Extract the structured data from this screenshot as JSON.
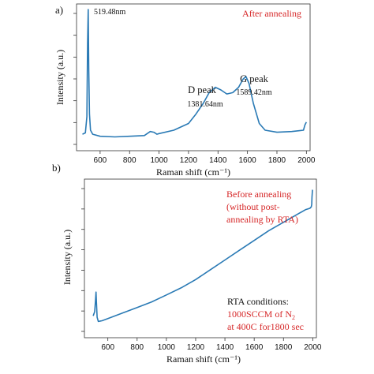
{
  "chart_data": [
    {
      "type": "line",
      "panel_label": "a)",
      "xlabel": "Raman shift (cm⁻¹)",
      "ylabel": "Intensity (a.u.)",
      "xlim": [
        440,
        2025
      ],
      "ylim": [
        0,
        1
      ],
      "x_ticks": [
        600,
        800,
        1000,
        1200,
        1400,
        1600,
        1800,
        2000
      ],
      "grid": false,
      "color": "#2a7ab5",
      "annotations": [
        {
          "id": "top",
          "text": "519.48nm"
        },
        {
          "id": "d_label",
          "text": "D peak"
        },
        {
          "id": "d_pos",
          "text": "1381.64nm"
        },
        {
          "id": "g_label",
          "text": "G peak"
        },
        {
          "id": "g_pos",
          "text": "1589.42nm"
        },
        {
          "id": "note",
          "text": "After annealing",
          "color": "#d62728"
        }
      ],
      "series": [
        {
          "x": [
            480,
            500,
            510,
            515,
            519.48,
            523,
            528,
            535,
            550,
            600,
            700,
            800,
            900,
            940,
            965,
            985,
            1000,
            1100,
            1200,
            1250,
            1300,
            1340,
            1381.64,
            1420,
            1460,
            1500,
            1540,
            1570,
            1589.42,
            1610,
            1640,
            1680,
            1720,
            1800,
            1900,
            1980,
            1990,
            2000
          ],
          "y": [
            0.07,
            0.08,
            0.2,
            0.75,
            1.0,
            0.55,
            0.22,
            0.1,
            0.07,
            0.055,
            0.05,
            0.055,
            0.06,
            0.09,
            0.085,
            0.07,
            0.075,
            0.1,
            0.15,
            0.22,
            0.3,
            0.38,
            0.42,
            0.4,
            0.37,
            0.38,
            0.42,
            0.48,
            0.5,
            0.45,
            0.3,
            0.15,
            0.1,
            0.085,
            0.09,
            0.1,
            0.14,
            0.16
          ]
        }
      ]
    },
    {
      "type": "line",
      "panel_label": "b)",
      "xlabel": "Raman shift (cm⁻¹)",
      "ylabel": "Intensity (a.u.)",
      "xlim": [
        440,
        2025
      ],
      "ylim": [
        0,
        1
      ],
      "x_ticks": [
        600,
        800,
        1000,
        1200,
        1400,
        1600,
        1800,
        2000
      ],
      "grid": false,
      "color": "#2a7ab5",
      "annotations": [
        {
          "id": "before",
          "lines": [
            "Before annealing",
            "(without post-",
            "annealing by RTA)"
          ],
          "color": "#d62728"
        },
        {
          "id": "rta_title",
          "text": "RTA conditions:",
          "color": "#111111"
        },
        {
          "id": "rta_flow",
          "text": "1000SCCM of N",
          "sub": "2",
          "color": "#d62728"
        },
        {
          "id": "rta_time",
          "text": "at 400C for1800 sec",
          "color": "#d62728"
        }
      ],
      "series": [
        {
          "x": [
            500,
            510,
            515,
            519,
            522,
            527,
            535,
            560,
            600,
            700,
            800,
            900,
            1000,
            1100,
            1200,
            1300,
            1400,
            1500,
            1600,
            1700,
            1800,
            1900,
            1950,
            1980,
            1990,
            1993,
            1995,
            1998,
            2000
          ],
          "y": [
            0.1,
            0.13,
            0.2,
            0.27,
            0.2,
            0.09,
            0.06,
            0.065,
            0.08,
            0.12,
            0.16,
            0.2,
            0.25,
            0.3,
            0.36,
            0.43,
            0.5,
            0.57,
            0.64,
            0.71,
            0.77,
            0.83,
            0.86,
            0.87,
            0.88,
            0.9,
            0.95,
            1.0,
            1.0
          ]
        }
      ]
    }
  ]
}
